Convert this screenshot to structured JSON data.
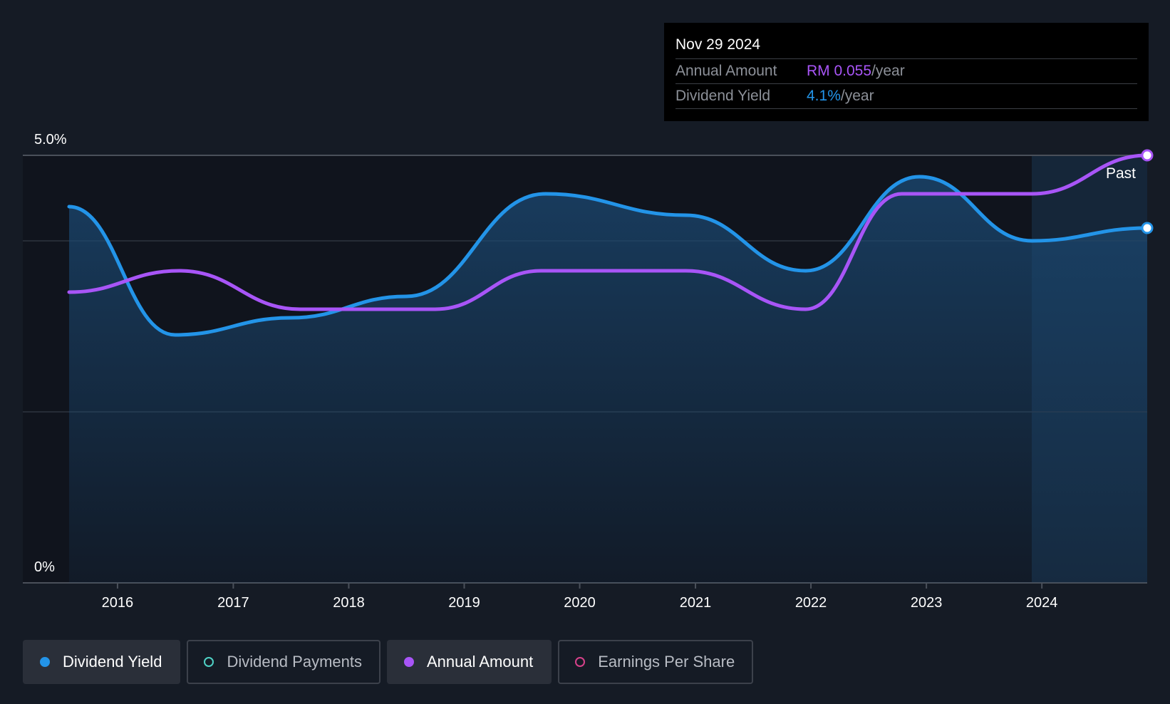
{
  "tooltip": {
    "date": "Nov 29 2024",
    "annual_label": "Annual Amount",
    "annual_value": "RM 0.055",
    "annual_unit": "/year",
    "yield_label": "Dividend Yield",
    "yield_value": "4.1%",
    "yield_unit": "/year"
  },
  "past_label": "Past",
  "legend": [
    {
      "label": "Dividend Yield",
      "active": true,
      "color": "#2394e8",
      "filled": true
    },
    {
      "label": "Dividend Payments",
      "active": false,
      "color": "#4fd1c5",
      "filled": false
    },
    {
      "label": "Annual Amount",
      "active": true,
      "color": "#a855f7",
      "filled": true
    },
    {
      "label": "Earnings Per Share",
      "active": false,
      "color": "#d6418a",
      "filled": false
    }
  ],
  "colors": {
    "background": "#151b25",
    "dividend_yield": "#2394e8",
    "annual_amount": "#a855f7",
    "grid": "#2e343e"
  },
  "chart_data": {
    "type": "line",
    "x_type": "date",
    "x_tick_labels": [
      "2016",
      "2017",
      "2018",
      "2019",
      "2020",
      "2021",
      "2022",
      "2023",
      "2024"
    ],
    "xlim": [
      "2015-08-01",
      "2024-11-29"
    ],
    "y_tick_labels": [
      "0%",
      "5.0%"
    ],
    "ylim": [
      0,
      5.0
    ],
    "grid": true,
    "series": [
      {
        "name": "Dividend Yield",
        "color": "#2394e8",
        "area": true,
        "points": [
          [
            "2015-08-01",
            4.4
          ],
          [
            "2016-07-01",
            2.9
          ],
          [
            "2017-07-01",
            3.1
          ],
          [
            "2018-07-01",
            3.35
          ],
          [
            "2019-09-15",
            4.55
          ],
          [
            "2020-12-01",
            4.3
          ],
          [
            "2021-12-15",
            3.65
          ],
          [
            "2022-12-10",
            4.75
          ],
          [
            "2023-12-01",
            4.0
          ],
          [
            "2024-11-29",
            4.15
          ]
        ]
      },
      {
        "name": "Annual Amount",
        "color": "#a855f7",
        "area": false,
        "points": [
          [
            "2015-08-01",
            3.4
          ],
          [
            "2016-07-15",
            3.65
          ],
          [
            "2017-08-01",
            3.2
          ],
          [
            "2018-10-01",
            3.2
          ],
          [
            "2019-09-01",
            3.65
          ],
          [
            "2020-12-01",
            3.65
          ],
          [
            "2021-12-15",
            3.2
          ],
          [
            "2022-10-15",
            4.55
          ],
          [
            "2023-12-01",
            4.55
          ],
          [
            "2024-11-29",
            5.0
          ]
        ]
      }
    ]
  }
}
